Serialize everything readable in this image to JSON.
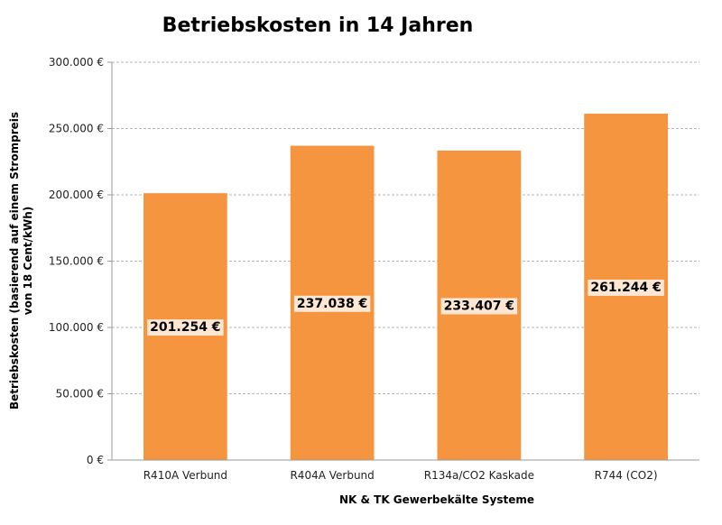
{
  "chart_data": {
    "type": "bar",
    "title": "Betriebskosten in 14 Jahren",
    "xlabel": "NK & TK Gewerbekälte Systeme",
    "ylabel_lines": [
      "Betriebskosten (basierend auf einem Strompreis",
      "von 18 Cent/kWh)"
    ],
    "categories": [
      "R410A Verbund",
      "R404A Verbund",
      "R134a/CO2 Kaskade",
      "R744 (CO2)"
    ],
    "values": [
      201254,
      237038,
      233407,
      261244
    ],
    "value_labels": [
      "201.254 €",
      "237.038 €",
      "233.407 €",
      "261.244 €"
    ],
    "ylim": [
      0,
      300000
    ],
    "y_ticks": [
      0,
      50000,
      100000,
      150000,
      200000,
      250000,
      300000
    ],
    "y_tick_labels": [
      "0 €",
      "50.000 €",
      "100.000 €",
      "150.000 €",
      "200.000 €",
      "250.000 €",
      "300.000 €"
    ],
    "grid": true,
    "bar_color": "#f59540",
    "label_bg_color": "#fde6d2"
  }
}
